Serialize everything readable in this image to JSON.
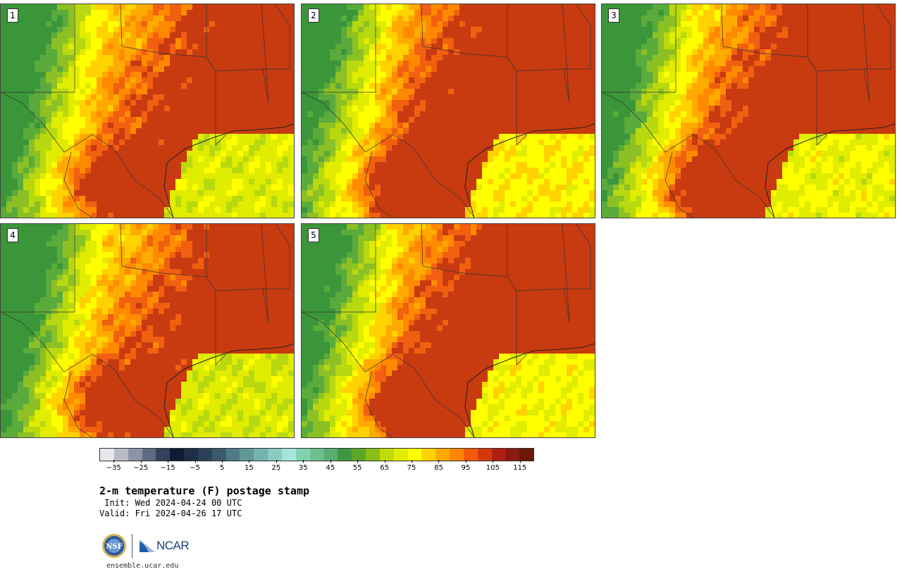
{
  "panels": [
    {
      "label": "1",
      "heat": 0.0
    },
    {
      "label": "2",
      "heat": 0.12
    },
    {
      "label": "3",
      "heat": 0.05
    },
    {
      "label": "4",
      "heat": -0.02
    },
    {
      "label": "5",
      "heat": 0.08
    }
  ],
  "colorbar": {
    "colors": [
      "#e8e8ec",
      "#b9bcc8",
      "#8c93a4",
      "#5f6a82",
      "#34405e",
      "#101c34",
      "#1c2e48",
      "#2a4058",
      "#3a5a6a",
      "#4e7c86",
      "#609898",
      "#76b2ae",
      "#8ccac2",
      "#a4e6dc",
      "#80d2b0",
      "#6cc090",
      "#58ae70",
      "#3c9640",
      "#5ca62a",
      "#8cbe18",
      "#c0dc08",
      "#e2ee00",
      "#ffff00",
      "#ffd200",
      "#ffaa00",
      "#ff8400",
      "#f05a0a",
      "#d4380a",
      "#b02010",
      "#8a1a10",
      "#6a1808"
    ],
    "tick_labels": [
      "−35",
      "−25",
      "−15",
      "−5",
      "5",
      "15",
      "25",
      "35",
      "45",
      "55",
      "65",
      "75",
      "85",
      "95",
      "105",
      "115"
    ],
    "tick_values": [
      -35,
      -25,
      -15,
      -5,
      5,
      15,
      25,
      35,
      45,
      55,
      65,
      75,
      85,
      95,
      105,
      115
    ],
    "min": -40,
    "max": 120
  },
  "title": "2-m temperature (F) postage stamp",
  "init": " Init: Wed 2024-04-24 00 UTC",
  "valid": "Valid: Fri 2024-04-26 17 UTC",
  "logos": {
    "nsf": "NSF",
    "ncar": "NCAR"
  },
  "website": "ensemble.ucar.edu"
}
